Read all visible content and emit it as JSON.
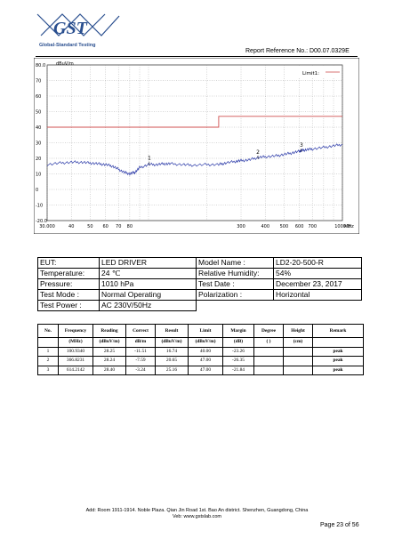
{
  "header": {
    "logo_text": "GST",
    "logo_subtitle": "Global-Standard Testing",
    "report_reference": "Report Reference No.: D00.07.0329E"
  },
  "chart_data": {
    "type": "line",
    "ylabel": "dBuV/m",
    "ylim": [
      -20,
      80
    ],
    "yticks": [
      "80.0",
      "70",
      "60",
      "50",
      "40",
      "30",
      "20",
      "10",
      "0",
      "-10",
      "-20.0"
    ],
    "xscale": "log",
    "xlim": [
      30,
      1000
    ],
    "xlabel": "MHz",
    "xtick_values": [
      30,
      40,
      50,
      60,
      70,
      80,
      300,
      400,
      500,
      600,
      700,
      1000
    ],
    "xtick_labels": [
      "30.000",
      "40",
      "50",
      "60",
      "70",
      "80",
      "300",
      "400",
      "500",
      "600",
      "700",
      "1000.0"
    ],
    "grid": true,
    "legend_label": "Limit1:",
    "limit_line": {
      "x": [
        30,
        230,
        230,
        1000
      ],
      "y": [
        40,
        40,
        47,
        47
      ],
      "color": "#d05050"
    },
    "series": [
      {
        "color": "#2b3aa8",
        "x": [
          30,
          35,
          40,
          45,
          50,
          55,
          60,
          65,
          70,
          75,
          80,
          85,
          90,
          100,
          110,
          120,
          130,
          150,
          170,
          200,
          230,
          250,
          280,
          300,
          330,
          366,
          400,
          450,
          500,
          550,
          600,
          614,
          650,
          700,
          800,
          900,
          1000
        ],
        "y": [
          16,
          17,
          17.5,
          17.5,
          17,
          16.5,
          16,
          15,
          13,
          11,
          10,
          11,
          14,
          16,
          16,
          16.5,
          16.5,
          16,
          15.5,
          16,
          16,
          17,
          18,
          18.5,
          19,
          20.5,
          21,
          21.5,
          22.5,
          23.5,
          24.5,
          25,
          25.5,
          26,
          27,
          28,
          29
        ]
      }
    ],
    "markers": [
      {
        "label": "1",
        "x": 100.934,
        "y": 16.74
      },
      {
        "label": "2",
        "x": 366.8231,
        "y": 20.65
      },
      {
        "label": "3",
        "x": 614.2142,
        "y": 25.16
      }
    ]
  },
  "info": {
    "rows": [
      {
        "l1": "EUT:",
        "v1": "LED DRIVER",
        "l2": "Model Name :",
        "v2": "LD2-20-500-R"
      },
      {
        "l1": "Temperature:",
        "v1": "24 ℃",
        "l2": "Relative Humidity:",
        "v2": "54%"
      },
      {
        "l1": "Pressure:",
        "v1": "1010 hPa",
        "l2": "Test Date :",
        "v2": "December 23, 2017"
      },
      {
        "l1": "Test Mode :",
        "v1": "Normal Operating",
        "l2": "Polarization :",
        "v2": "Horizontal"
      }
    ],
    "power_label": "Test Power :",
    "power_value": "AC 230V/50Hz"
  },
  "results": {
    "headers": [
      "No.",
      "Frequency",
      "Reading",
      "Correct",
      "Result",
      "Limit",
      "Margin",
      "Degree",
      "Height",
      "Remark"
    ],
    "units": [
      "",
      "(MHz)",
      "(dBuV/m)",
      "dB/m",
      "(dBuV/m)",
      "(dBuV/m)",
      "(dB)",
      "(  )",
      "(cm)",
      ""
    ],
    "rows": [
      [
        "1",
        "100.9340",
        "28.25",
        "-11.51",
        "16.74",
        "40.00",
        "-23.26",
        "",
        "",
        "peak"
      ],
      [
        "2",
        "366.8231",
        "28.24",
        "-7.59",
        "20.65",
        "47.00",
        "-26.35",
        "",
        "",
        "peak"
      ],
      [
        "3",
        "614.2142",
        "28.40",
        "-3.24",
        "25.16",
        "47.00",
        "-21.84",
        "",
        "",
        "peak"
      ]
    ]
  },
  "footer": {
    "address": "Add: Room 1911-1914. Noble Plaza. Qian Jin Road 1st. Bao An district. Shenzhen, Guangdong, China",
    "web": "Veb: www.gstslab.com",
    "page": "Page 23 of 56"
  }
}
